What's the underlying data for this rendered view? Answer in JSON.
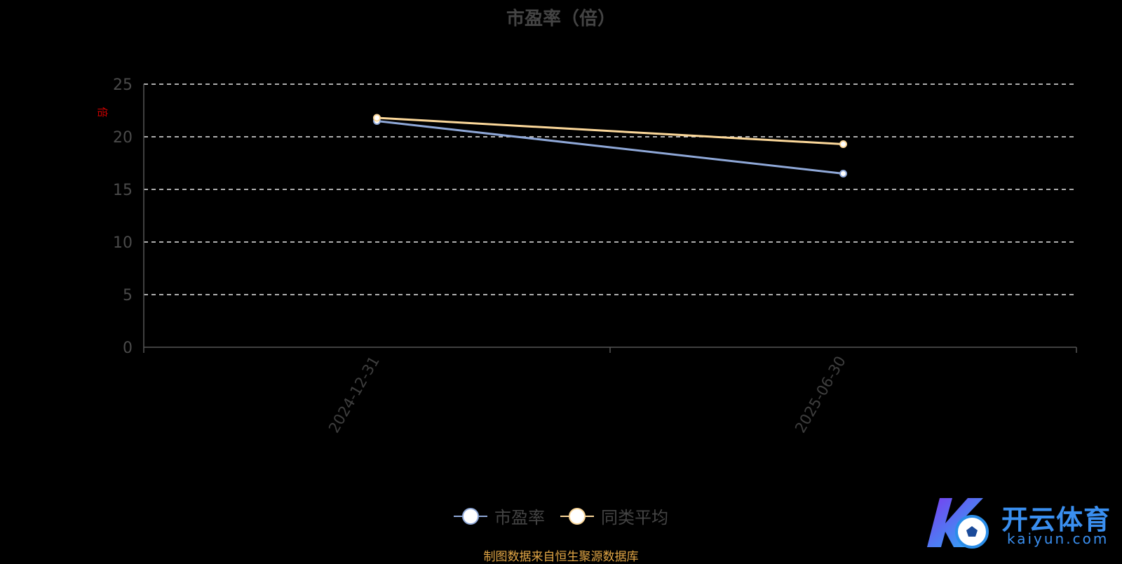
{
  "chart_data": {
    "type": "line",
    "title": "市盈率（倍）",
    "ylabel": "倍",
    "categories": [
      "2024-12-31",
      "2025-06-30"
    ],
    "ylim": [
      0,
      25
    ],
    "yticks": [
      0,
      5,
      10,
      15,
      20,
      25
    ],
    "grid": true,
    "legend_position": "bottom",
    "series": [
      {
        "name": "市盈率",
        "values": [
          21.5,
          16.5
        ],
        "color": "#8fa8d8"
      },
      {
        "name": "同类平均",
        "values": [
          21.8,
          19.3
        ],
        "color": "#fcd89a"
      }
    ]
  },
  "source_note": "制图数据来自恒生聚源数据库",
  "watermark": {
    "cn": "开云体育",
    "en": "kaiyun.com",
    "color": "#3a8ff0"
  }
}
